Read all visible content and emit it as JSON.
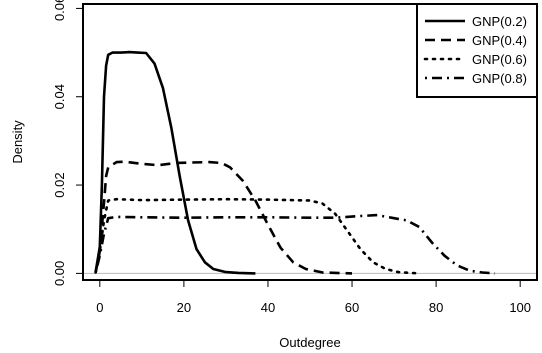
{
  "chart_data": {
    "type": "line",
    "title": "",
    "xlabel": "Outdegree",
    "ylabel": "Density",
    "xlim": [
      -4,
      104
    ],
    "ylim": [
      -0.0015,
      0.061
    ],
    "xticks": [
      0,
      20,
      40,
      60,
      80,
      100
    ],
    "xtick_labels": [
      "0",
      "20",
      "40",
      "60",
      "80",
      "100"
    ],
    "yticks": [
      0.0,
      0.02,
      0.04,
      0.06
    ],
    "ytick_labels": [
      "0.00",
      "0.02",
      "0.04",
      "0.06"
    ],
    "grid": false,
    "legend": "top-right",
    "reference_line": {
      "y": 0,
      "color": "#bbbbbb"
    },
    "series": [
      {
        "name": "GNP(0.2)",
        "dash": "solid",
        "points": [
          [
            -1,
            0.0003
          ],
          [
            0,
            0.006
          ],
          [
            0.5,
            0.02
          ],
          [
            1,
            0.04
          ],
          [
            1.5,
            0.047
          ],
          [
            2,
            0.0495
          ],
          [
            3,
            0.05
          ],
          [
            5,
            0.05
          ],
          [
            7,
            0.0501
          ],
          [
            9,
            0.05
          ],
          [
            11,
            0.0499
          ],
          [
            13,
            0.0475
          ],
          [
            15,
            0.042
          ],
          [
            17,
            0.033
          ],
          [
            19,
            0.022
          ],
          [
            21,
            0.012
          ],
          [
            23,
            0.0055
          ],
          [
            25,
            0.0025
          ],
          [
            27,
            0.001
          ],
          [
            30,
            0.0003
          ],
          [
            33,
            0.0001
          ],
          [
            37,
            0.0
          ]
        ]
      },
      {
        "name": "GNP(0.4)",
        "dash": "dashed",
        "points": [
          [
            -1,
            0.0002
          ],
          [
            0,
            0.005
          ],
          [
            1,
            0.016
          ],
          [
            1.5,
            0.022
          ],
          [
            2,
            0.024
          ],
          [
            4,
            0.0252
          ],
          [
            6,
            0.0253
          ],
          [
            10,
            0.0248
          ],
          [
            14,
            0.0245
          ],
          [
            18,
            0.025
          ],
          [
            22,
            0.0251
          ],
          [
            26,
            0.0252
          ],
          [
            29,
            0.025
          ],
          [
            31,
            0.024
          ],
          [
            34,
            0.021
          ],
          [
            37,
            0.0165
          ],
          [
            40,
            0.011
          ],
          [
            43,
            0.0058
          ],
          [
            46,
            0.0025
          ],
          [
            49,
            0.001
          ],
          [
            53,
            0.0002
          ],
          [
            60,
            0.0
          ]
        ]
      },
      {
        "name": "GNP(0.6)",
        "dash": "dotted",
        "points": [
          [
            -1,
            0.0002
          ],
          [
            0,
            0.005
          ],
          [
            1,
            0.012
          ],
          [
            2,
            0.0165
          ],
          [
            4,
            0.0168
          ],
          [
            10,
            0.0166
          ],
          [
            20,
            0.0167
          ],
          [
            30,
            0.0168
          ],
          [
            40,
            0.0167
          ],
          [
            50,
            0.0165
          ],
          [
            53,
            0.0158
          ],
          [
            56,
            0.0135
          ],
          [
            59,
            0.0095
          ],
          [
            62,
            0.0055
          ],
          [
            65,
            0.0025
          ],
          [
            68,
            0.001
          ],
          [
            71,
            0.0003
          ],
          [
            76,
            0.0
          ]
        ]
      },
      {
        "name": "GNP(0.8)",
        "dash": "dashdot",
        "points": [
          [
            -1,
            0.0002
          ],
          [
            0,
            0.004
          ],
          [
            1,
            0.009
          ],
          [
            2,
            0.0125
          ],
          [
            4,
            0.0128
          ],
          [
            10,
            0.0127
          ],
          [
            20,
            0.0126
          ],
          [
            30,
            0.0127
          ],
          [
            40,
            0.0127
          ],
          [
            50,
            0.0126
          ],
          [
            56,
            0.0126
          ],
          [
            62,
            0.013
          ],
          [
            66,
            0.0132
          ],
          [
            70,
            0.0125
          ],
          [
            73,
            0.012
          ],
          [
            76,
            0.0105
          ],
          [
            79,
            0.007
          ],
          [
            82,
            0.004
          ],
          [
            85,
            0.0018
          ],
          [
            88,
            0.0006
          ],
          [
            91,
            0.0002
          ],
          [
            94,
            0.0
          ]
        ]
      }
    ]
  }
}
